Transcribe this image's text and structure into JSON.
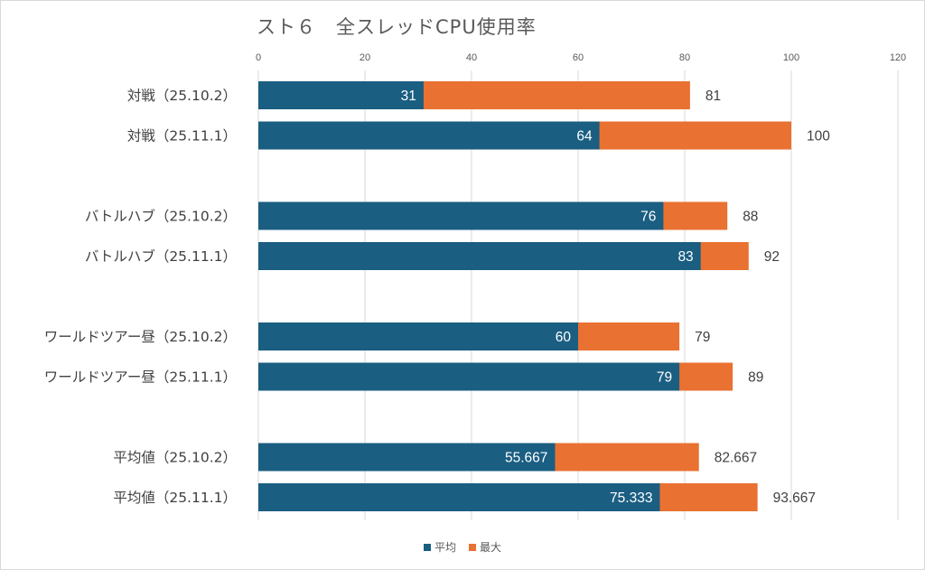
{
  "chart_data": {
    "type": "bar",
    "orientation": "horizontal",
    "overlap": true,
    "title": "スト６　全スレッドCPU使用率",
    "xlabel": "",
    "ylabel": "",
    "xlim": [
      0,
      120
    ],
    "x_ticks": [
      0,
      20,
      40,
      60,
      80,
      100,
      120
    ],
    "grid": true,
    "legend_position": "bottom",
    "categories": [
      "対戦（25.10.2）",
      "対戦（25.11.1）",
      "",
      "バトルハブ（25.10.2）",
      "バトルハブ（25.11.1）",
      "",
      "ワールドツアー昼（25.10.2）",
      "ワールドツアー昼（25.11.1）",
      "",
      "平均値（25.10.2）",
      "平均値（25.11.1）"
    ],
    "series": [
      {
        "name": "平均",
        "color": "#1a5e82",
        "values": [
          31,
          64,
          null,
          76,
          83,
          null,
          60,
          79,
          null,
          55.667,
          75.333
        ],
        "labels": [
          "31",
          "64",
          "",
          "76",
          "83",
          "",
          "60",
          "79",
          "",
          "55.667",
          "75.333"
        ]
      },
      {
        "name": "最大",
        "color": "#e97132",
        "values": [
          81,
          100,
          null,
          88,
          92,
          null,
          79,
          89,
          null,
          82.667,
          93.667
        ],
        "labels": [
          "81",
          "100",
          "",
          "88",
          "92",
          "",
          "79",
          "89",
          "",
          "82.667",
          "93.667"
        ]
      }
    ]
  }
}
